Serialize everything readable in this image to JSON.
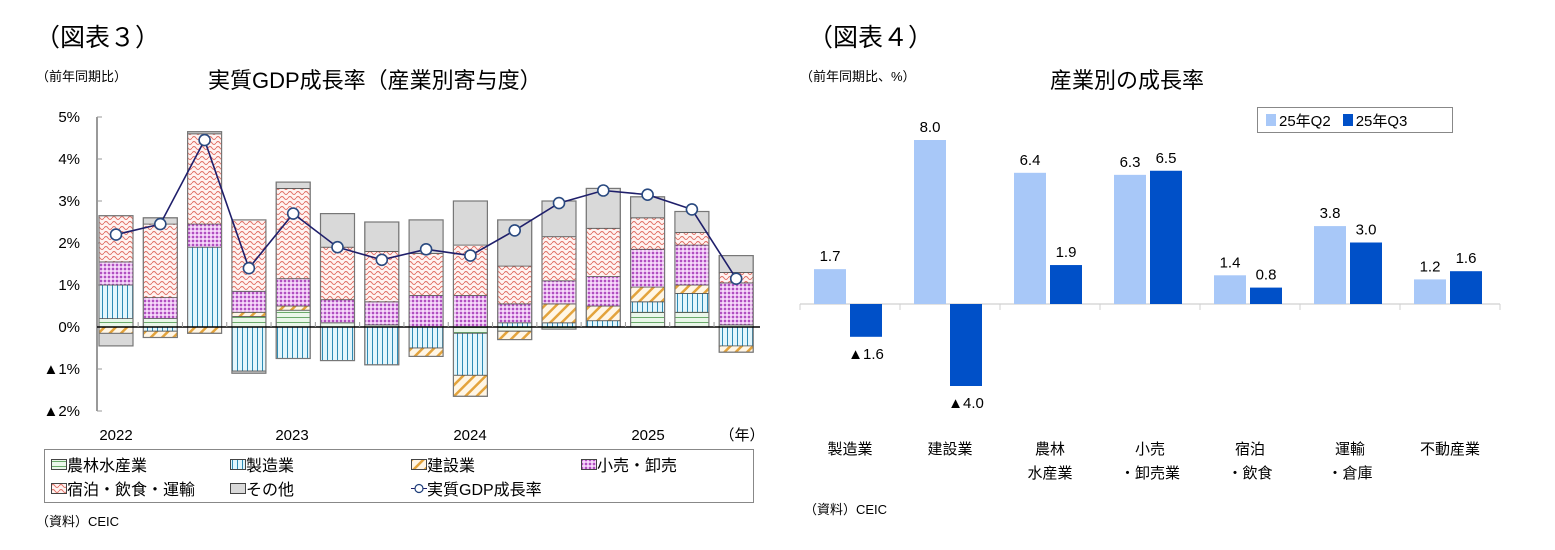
{
  "left": {
    "fig_label": "（図表３）",
    "unit_label": "（前年同期比）",
    "title": "実質GDP成長率（産業別寄与度）",
    "year_unit": "（年）",
    "source": "（資料）CEIC",
    "y_ticks": [
      "5%",
      "4%",
      "3%",
      "2%",
      "1%",
      "0%",
      "▲1%",
      "▲2%"
    ],
    "x_years": [
      "2022",
      "2023",
      "2024",
      "2025"
    ],
    "legend": [
      {
        "key": "agri",
        "label": "農林水産業"
      },
      {
        "key": "mfg",
        "label": "製造業"
      },
      {
        "key": "constr",
        "label": "建設業"
      },
      {
        "key": "retail",
        "label": "小売・卸売"
      },
      {
        "key": "hosp",
        "label": "宿泊・飲食・運輸"
      },
      {
        "key": "other",
        "label": "その他"
      },
      {
        "key": "gdp",
        "label": "実質GDP成長率"
      }
    ],
    "colors": {
      "agri": "#e6f5e6",
      "agri_line": "#5a9a5a",
      "mfg": "#dff4fb",
      "mfg_line": "#2e8bb5",
      "constr": "#fde8c8",
      "constr_line": "#e0a040",
      "retail": "#e7b8ee",
      "retail_line": "#a040b0",
      "hosp": "#fbe3df",
      "hosp_line": "#d9534f",
      "other": "#d9d9d9",
      "gdp_line": "#1f1f6b"
    }
  },
  "right": {
    "fig_label": "（図表４）",
    "unit_label": "（前年同期比、%）",
    "title": "産業別の成長率",
    "source": "（資料）CEIC",
    "legend": [
      {
        "label": "25年Q2",
        "color": "#a8c8f8"
      },
      {
        "label": "25年Q3",
        "color": "#0050c8"
      }
    ],
    "categories": [
      [
        "製造業"
      ],
      [
        "建設業"
      ],
      [
        "農林",
        "水産業"
      ],
      [
        "小売",
        "・卸売業"
      ],
      [
        "宿泊",
        "・飲食"
      ],
      [
        "運輸",
        "・倉庫"
      ],
      [
        "不動産業"
      ]
    ]
  },
  "chart_data": [
    {
      "type": "bar",
      "subtype": "stacked_bar_with_line",
      "title": "実質GDP成長率（産業別寄与度）",
      "ylabel": "前年同期比",
      "xlabel": "年",
      "ylim": [
        -2,
        5
      ],
      "y_tick_labels": [
        "▲2%",
        "▲1%",
        "0%",
        "1%",
        "2%",
        "3%",
        "4%",
        "5%"
      ],
      "x": [
        "2022Q1",
        "2022Q2",
        "2022Q3",
        "2022Q4",
        "2023Q1",
        "2023Q2",
        "2023Q3",
        "2023Q4",
        "2024Q1",
        "2024Q2",
        "2024Q3",
        "2024Q4",
        "2025Q1",
        "2025Q2",
        "2025Q3"
      ],
      "x_tick_labels": [
        "2022",
        "2023",
        "2024",
        "2025"
      ],
      "series": [
        {
          "name": "農林水産業",
          "key": "agri",
          "values": [
            0.2,
            0.2,
            0.0,
            0.25,
            0.4,
            0.1,
            0.05,
            0.0,
            -0.15,
            -0.1,
            -0.05,
            0.0,
            0.35,
            0.35,
            0.05
          ]
        },
        {
          "name": "製造業",
          "key": "mfg",
          "values": [
            0.8,
            -0.1,
            1.9,
            -1.05,
            -0.75,
            -0.8,
            -0.9,
            -0.5,
            -1.0,
            0.1,
            0.1,
            0.15,
            0.25,
            0.45,
            -0.45
          ]
        },
        {
          "name": "建設業",
          "key": "constr",
          "values": [
            -0.15,
            -0.15,
            -0.15,
            0.1,
            0.1,
            0.0,
            0.0,
            -0.2,
            -0.5,
            -0.2,
            0.45,
            0.35,
            0.35,
            0.2,
            -0.15
          ]
        },
        {
          "name": "小売・卸売",
          "key": "retail",
          "values": [
            0.55,
            0.5,
            0.55,
            0.5,
            0.65,
            0.55,
            0.55,
            0.75,
            0.75,
            0.45,
            0.55,
            0.7,
            0.9,
            0.95,
            1.0
          ]
        },
        {
          "name": "宿泊・飲食・運輸",
          "key": "hosp",
          "values": [
            1.1,
            1.75,
            2.15,
            1.7,
            2.15,
            1.25,
            1.2,
            1.0,
            1.2,
            0.9,
            1.05,
            1.15,
            0.75,
            0.3,
            0.25
          ]
        },
        {
          "name": "その他",
          "key": "other",
          "values": [
            -0.3,
            0.15,
            0.05,
            -0.05,
            0.15,
            0.8,
            0.7,
            0.8,
            1.05,
            1.1,
            0.85,
            0.95,
            0.5,
            0.5,
            0.4
          ]
        },
        {
          "name": "実質GDP成長率",
          "key": "gdp",
          "type": "line",
          "values": [
            2.2,
            2.45,
            4.45,
            1.4,
            2.7,
            1.9,
            1.6,
            1.85,
            1.7,
            2.3,
            2.95,
            3.25,
            3.15,
            2.8,
            1.15
          ]
        }
      ],
      "legend_position": "bottom",
      "grid": false
    },
    {
      "type": "bar",
      "title": "産業別の成長率",
      "ylabel": "前年同期比、%",
      "categories": [
        "製造業",
        "建設業",
        "農林水産業",
        "小売・卸売業",
        "宿泊・飲食",
        "運輸・倉庫",
        "不動産業"
      ],
      "series": [
        {
          "name": "25年Q2",
          "values": [
            1.7,
            8.0,
            6.4,
            6.3,
            1.4,
            3.8,
            1.2
          ]
        },
        {
          "name": "25年Q3",
          "values": [
            -1.6,
            -4.0,
            1.9,
            6.5,
            0.8,
            3.0,
            1.6
          ]
        }
      ],
      "data_labels": [
        [
          "1.7",
          "8.0",
          "6.4",
          "6.3",
          "1.4",
          "3.8",
          "1.2"
        ],
        [
          "▲1.6",
          "▲4.0",
          "1.9",
          "6.5",
          "0.8",
          "3.0",
          "1.6"
        ]
      ],
      "legend_position": "top-right",
      "grid": false
    }
  ]
}
